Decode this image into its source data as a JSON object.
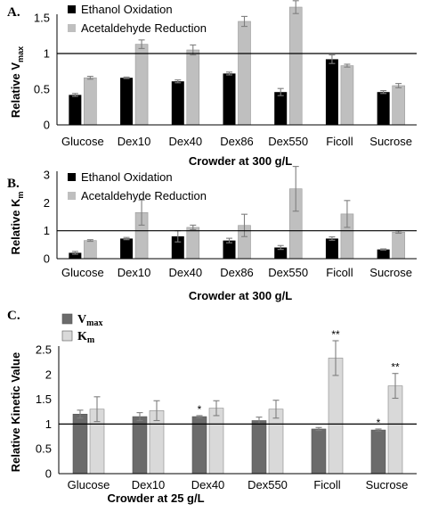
{
  "colors": {
    "ethanol": "#000000",
    "acetaldehyde": "#bfbfbf",
    "vmax": "#6b6b6b",
    "km": "#d9d9d9",
    "errorbar": "#7f7f7f"
  },
  "chart_data": [
    {
      "type": "bar",
      "panel": "A.",
      "categories": [
        "Glucose",
        "Dex10",
        "Dex40",
        "Dex86",
        "Dex550",
        "Ficoll",
        "Sucrose"
      ],
      "xlabel": "Crowder at 300 g/L",
      "ylabel": {
        "main": "Relative V",
        "sub": "max"
      },
      "ylim": [
        0,
        1.5
      ],
      "yticks": [
        "0",
        "0.5",
        "1",
        "1.5"
      ],
      "reference_line": 1,
      "legend_position": "top-left",
      "series": [
        {
          "name": "Ethanol Oxidation",
          "values": [
            0.42,
            0.66,
            0.61,
            0.72,
            0.46,
            0.92,
            0.46
          ],
          "errors": [
            0.02,
            0.01,
            0.02,
            0.02,
            0.05,
            0.06,
            0.02
          ]
        },
        {
          "name": "Acetaldehyde Reduction",
          "values": [
            0.66,
            1.13,
            1.05,
            1.45,
            1.65,
            0.83,
            0.55
          ],
          "errors": [
            0.02,
            0.06,
            0.07,
            0.07,
            0.09,
            0.02,
            0.03
          ]
        }
      ]
    },
    {
      "type": "bar",
      "panel": "B.",
      "categories": [
        "Glucose",
        "Dex10",
        "Dex40",
        "Dex86",
        "Dex550",
        "Ficoll",
        "Sucrose"
      ],
      "xlabel": "Crowder at 300 g/L",
      "ylabel": {
        "main": "Relative K",
        "sub": "m"
      },
      "ylim": [
        0,
        3
      ],
      "yticks": [
        "0",
        "1",
        "2",
        "3"
      ],
      "reference_line": 1,
      "legend_position": "top-left",
      "series": [
        {
          "name": "Ethanol Oxidation",
          "values": [
            0.21,
            0.72,
            0.8,
            0.65,
            0.4,
            0.72,
            0.33
          ],
          "errors": [
            0.05,
            0.04,
            0.2,
            0.08,
            0.07,
            0.06,
            0.02
          ]
        },
        {
          "name": "Acetaldehyde Reduction",
          "values": [
            0.65,
            1.65,
            1.12,
            1.19,
            2.5,
            1.6,
            0.95
          ],
          "errors": [
            0.03,
            0.45,
            0.08,
            0.4,
            0.8,
            0.48,
            0.04
          ]
        }
      ]
    },
    {
      "type": "bar",
      "panel": "C.",
      "categories": [
        "Glucose",
        "Dex10",
        "Dex40",
        "Dex550",
        "Ficoll",
        "Sucrose"
      ],
      "xlabel": "Crowder at 25 g/L",
      "ylabel": "Relative Kinetic Value",
      "ylim": [
        0,
        2.5
      ],
      "yticks": [
        "0",
        "0.5",
        "1",
        "1.5",
        "2",
        "2.5"
      ],
      "reference_line": 1,
      "legend_position": "top-left",
      "series": [
        {
          "name": {
            "main": "V",
            "sub": "max"
          },
          "values": [
            1.2,
            1.15,
            1.15,
            1.07,
            0.9,
            0.88
          ],
          "errors": [
            0.08,
            0.08,
            0.02,
            0.07,
            0.03,
            0.02
          ],
          "annotations": [
            "",
            "",
            "*",
            "",
            "",
            "*"
          ]
        },
        {
          "name": {
            "main": "K",
            "sub": "m"
          },
          "values": [
            1.3,
            1.27,
            1.32,
            1.3,
            2.33,
            1.77
          ],
          "errors": [
            0.25,
            0.2,
            0.15,
            0.18,
            0.35,
            0.25
          ],
          "annotations": [
            "",
            "",
            "",
            "",
            "**",
            "**"
          ]
        }
      ]
    }
  ]
}
